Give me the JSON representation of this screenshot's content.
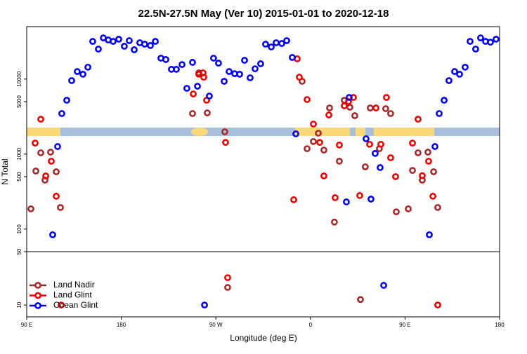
{
  "chart_data": [
    {
      "type": "scatter",
      "title": "22.5N-27.5N May (Ver 10)   2015-01-01 to 2020-12-18",
      "ylabel": "N Total",
      "log_y": true,
      "xlim": [
        90,
        540
      ],
      "ylim": [
        50,
        50000
      ],
      "yticks": [
        100,
        500,
        1000,
        5000,
        10000
      ],
      "series": [
        {
          "color": "#a52a2a",
          "x": [
            94.0,
            98.7,
            103.4,
            107.4,
            112.7,
            118.1,
            122.1,
            247.8,
            253.8,
            261.8,
            278.5,
            352.1,
            356.8,
            362.8,
            367.5,
            372.8,
            378.2,
            382.8,
            387.5,
            392.2,
            397.5,
            402.2,
            412.2,
            416.9,
            425.6,
            431.6,
            436.3,
            441.7,
            453.1,
            457.1,
            462.4,
            466.4,
            471.8,
            477.2,
            481.1
          ],
          "values": [
            186,
            594,
            1040,
            449,
            1060,
            581,
            194,
            3470,
            12100,
            3540,
            1980,
            9330,
            1180,
            1470,
            1900,
            1130,
            4120,
            124,
            803,
            5220,
            4210,
            3250,
            676,
            4120,
            1180,
            4030,
            3470,
            170,
            186,
            605,
            1040,
            449,
            1060,
            581,
            194
          ]
        },
        {
          "color": "#ee0000",
          "x": [
            98.0,
            103.4,
            113.4,
            108.1,
            118.1,
            248.5,
            253.8,
            257.8,
            258.5,
            261.2,
            279.2,
            344.1,
            347.4,
            349.4,
            356.8,
            362.8,
            368.8,
            372.8,
            377.5,
            383.5,
            387.5,
            392.2,
            396.2,
            400.9,
            406.9,
            416.3,
            422.3,
            427.0,
            432.3,
            436.3,
            441.0,
            457.1,
            462.4,
            466.4,
            472.4,
            476.5
          ],
          "values": [
            1400,
            2920,
            803,
            511,
            274,
            6330,
            11600,
            12100,
            10600,
            5220,
            1430,
            246,
            18600,
            10600,
            5330,
            2510,
            1430,
            511,
            3320,
            262,
            1320,
            4400,
            5000,
            5690,
            280,
            1350,
            4120,
            1350,
            5690,
            894,
            500,
            1400,
            2920,
            515,
            803,
            274
          ]
        },
        {
          "color": "#0000ee",
          "x": [
            114.7,
            119.4,
            123.4,
            128.1,
            132.8,
            138.1,
            143.5,
            148.2,
            152.8,
            158.2,
            162.9,
            167.6,
            172.2,
            177.6,
            182.9,
            187.6,
            192.3,
            197.6,
            202.3,
            207.7,
            212.4,
            217.7,
            222.4,
            227.7,
            232.4,
            237.8,
            242.4,
            247.8,
            252.5,
            263.8,
            267.8,
            272.5,
            277.9,
            282.6,
            287.9,
            292.6,
            297.3,
            302.6,
            307.3,
            312.6,
            317.3,
            322.7,
            327.4,
            332.7,
            337.4,
            342.7,
            346.1,
            394.2,
            396.9,
            412.9,
            417.6,
            421.6,
            426.3,
            473.1,
            478.5,
            482.5,
            487.2,
            491.8,
            497.2,
            501.9,
            507.2,
            511.9,
            517.2,
            521.9,
            526.6,
            531.3,
            536.6
          ],
          "values": [
            84,
            1260,
            3470,
            5220,
            9530,
            12600,
            11600,
            14400,
            31800,
            25100,
            35400,
            33200,
            31800,
            34000,
            27400,
            32500,
            24600,
            30500,
            29200,
            28000,
            31800,
            19000,
            18200,
            13500,
            13500,
            15600,
            7530,
            16700,
            8030,
            5940,
            19000,
            16300,
            9330,
            12600,
            11800,
            11600,
            17800,
            10400,
            13700,
            16000,
            29200,
            26800,
            30500,
            29800,
            32500,
            19400,
            1860,
            230,
            5690,
            1600,
            251,
            1020,
            661,
            84,
            1260,
            3470,
            5220,
            9530,
            12600,
            11600,
            14400,
            31800,
            25100,
            35400,
            31800,
            31000,
            34000
          ]
        }
      ]
    },
    {
      "type": "scatter",
      "xlabel": "Longitude (deg E)",
      "log_y": true,
      "legend": "bottomleft",
      "xlim": [
        90,
        540
      ],
      "xticks": [
        {
          "value": 90,
          "label": "90 E"
        },
        180,
        {
          "value": 270,
          "label": "90 W"
        },
        {
          "value": 360,
          "label": "0"
        },
        {
          "value": 450,
          "label": "90 E"
        },
        {
          "value": 540,
          "label": "180"
        }
      ],
      "ylim": [
        7,
        50
      ],
      "yticks": [
        10,
        50
      ],
      "series": [
        {
          "name": "Land Nadir",
          "color": "#a52a2a",
          "x": [
            281.2,
            407.6
          ],
          "values": [
            17,
            11.8
          ]
        },
        {
          "name": "Land Glint",
          "color": "#ee0000",
          "x": [
            122.8,
            281.2,
            481.1
          ],
          "values": [
            10,
            22.8,
            10
          ]
        },
        {
          "name": "Ocean Glint",
          "color": "#0000ee",
          "x": [
            259.2,
            429.7
          ],
          "values": [
            10,
            18.1
          ]
        }
      ]
    }
  ]
}
